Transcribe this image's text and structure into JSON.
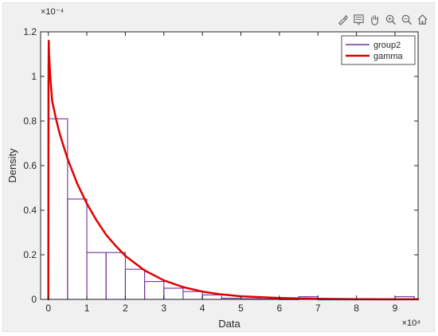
{
  "toolbar": {
    "icons": [
      "brush-icon",
      "datatip-icon",
      "pan-icon",
      "zoom-in-icon",
      "zoom-out-icon",
      "home-icon"
    ]
  },
  "chart_data": {
    "type": "bar",
    "title": "",
    "xlabel": "Data",
    "ylabel": "Density",
    "x_exponent_label": "×10⁴",
    "y_exponent_label": "×10⁻⁴",
    "xlim": [
      -0.2,
      9.6
    ],
    "ylim": [
      0,
      1.2
    ],
    "x_scale": 10000,
    "y_scale": 0.0001,
    "x_ticks": [
      0,
      1,
      2,
      3,
      4,
      5,
      6,
      7,
      8,
      9
    ],
    "x_tick_labels": [
      "0",
      "1",
      "2",
      "3",
      "4",
      "5",
      "6",
      "7",
      "8",
      "9"
    ],
    "y_ticks": [
      0,
      0.2,
      0.4,
      0.6,
      0.8,
      1,
      1.2
    ],
    "y_tick_labels": [
      "0",
      "0.2",
      "0.4",
      "0.6",
      "0.8",
      "1",
      "1.2"
    ],
    "grid": false,
    "legend_position": "top-right",
    "colors": {
      "histogram": "#7030a0",
      "gamma": "#e00000",
      "gamma_overlap": "#8a4a1a",
      "background": "#f0f0f0",
      "axes": "#ffffff"
    },
    "series": [
      {
        "name": "group2",
        "type": "histogram",
        "bin_width": 0.5,
        "bin_edges": [
          0,
          0.5,
          1,
          1.5,
          2,
          2.5,
          3,
          3.5,
          4,
          4.5,
          5,
          5.5,
          6,
          6.5,
          7,
          7.5,
          8,
          8.5,
          9,
          9.5
        ],
        "values": [
          0.81,
          0.45,
          0.21,
          0.21,
          0.135,
          0.08,
          0.05,
          0.035,
          0.02,
          0.005,
          0.003,
          0.002,
          0.001,
          0.012,
          0.0,
          0.0,
          0.0,
          0.0,
          0.012
        ]
      },
      {
        "name": "gamma",
        "type": "line",
        "x": [
          0,
          0.005,
          0.01,
          0.02,
          0.05,
          0.1,
          0.2,
          0.3,
          0.5,
          0.75,
          1,
          1.25,
          1.5,
          1.75,
          2,
          2.5,
          3,
          3.5,
          4,
          4.5,
          5,
          6,
          7,
          8,
          9,
          9.6
        ],
        "values": [
          0.0,
          0.97,
          1.16,
          1.1,
          1.0,
          0.89,
          0.81,
          0.74,
          0.63,
          0.52,
          0.43,
          0.355,
          0.29,
          0.24,
          0.195,
          0.13,
          0.085,
          0.055,
          0.035,
          0.022,
          0.014,
          0.006,
          0.0025,
          0.001,
          0.0005,
          0.0003
        ]
      }
    ]
  }
}
